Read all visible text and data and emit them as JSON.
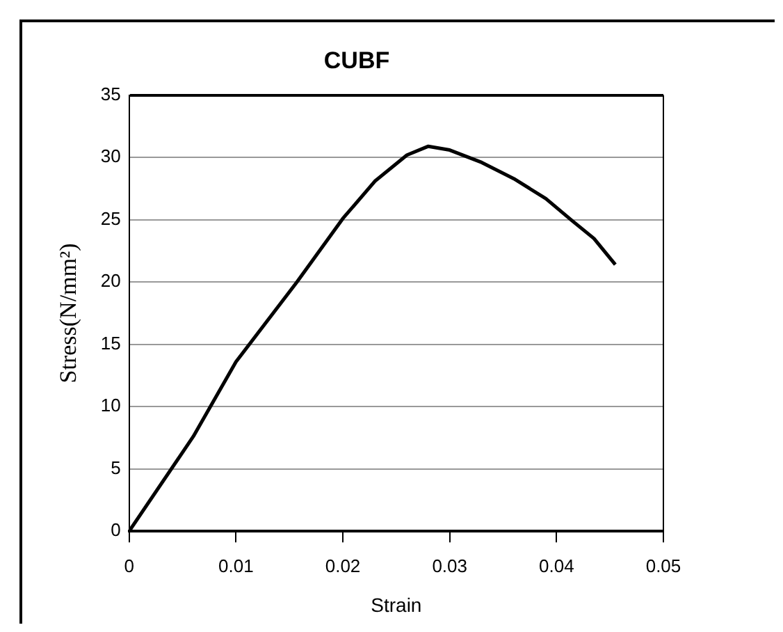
{
  "chart_data": {
    "type": "line",
    "title": "CUBF",
    "xlabel": "Strain",
    "ylabel": "Stress(N/mm²)",
    "series": [
      {
        "color": "#000000",
        "x": [
          0,
          0.006,
          0.01,
          0.0157,
          0.02,
          0.023,
          0.026,
          0.028,
          0.03,
          0.033,
          0.036,
          0.039,
          0.0415,
          0.0435,
          0.0455
        ],
        "values": [
          0,
          7.6,
          13.6,
          20,
          25.1,
          28.1,
          30.2,
          30.9,
          30.6,
          29.6,
          28.3,
          26.7,
          24.9,
          23.5,
          21.4
        ]
      }
    ],
    "xlim": [
      0,
      0.05
    ],
    "xticks": [
      0,
      0.01,
      0.02,
      0.03,
      0.04,
      0.05
    ],
    "ylim": [
      0,
      35
    ],
    "yticks": [
      0,
      5,
      10,
      15,
      20,
      25,
      30,
      35
    ],
    "grid": "y",
    "legend": false,
    "marker": "none",
    "line_style": "solid"
  }
}
